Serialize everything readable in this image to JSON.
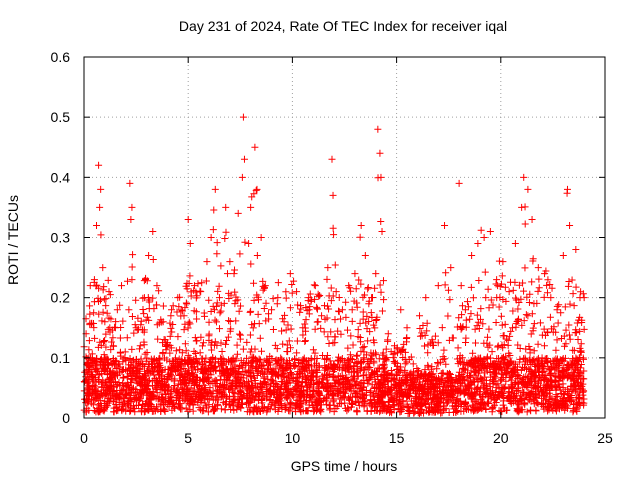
{
  "chart_data": {
    "type": "scatter",
    "title": "Day 231 of 2024, Rate Of TEC Index for receiver iqal",
    "xlabel": "GPS time / hours",
    "ylabel": "ROTI / TECUs",
    "xlim": [
      0,
      25
    ],
    "ylim": [
      0,
      0.6
    ],
    "xticks": [
      0,
      5,
      10,
      15,
      20,
      25
    ],
    "xtick_labels": [
      "0",
      "5",
      "10",
      "15",
      "20",
      "25"
    ],
    "yticks": [
      0,
      0.1,
      0.2,
      0.3,
      0.4,
      0.5,
      0.6
    ],
    "ytick_labels": [
      "0",
      "0.1",
      "0.2",
      "0.3",
      "0.4",
      "0.5",
      "0.6"
    ],
    "grid": true,
    "marker": "+",
    "color": "#ff0000",
    "series": [
      {
        "name": "ROTI",
        "note": "dense cloud of + markers between 0 and 24 h, mostly 0.02-0.2 TECU/s; representative envelope and peak samples",
        "points": [
          [
            0.1,
            0.14
          ],
          [
            0.2,
            0.05
          ],
          [
            0.3,
            0.22
          ],
          [
            0.4,
            0.1
          ],
          [
            0.5,
            0.23
          ],
          [
            0.6,
            0.32
          ],
          [
            0.7,
            0.42
          ],
          [
            0.75,
            0.35
          ],
          [
            0.8,
            0.38
          ],
          [
            0.9,
            0.25
          ],
          [
            1.0,
            0.16
          ],
          [
            1.2,
            0.21
          ],
          [
            1.4,
            0.12
          ],
          [
            1.6,
            0.18
          ],
          [
            1.8,
            0.22
          ],
          [
            2.0,
            0.08
          ],
          [
            2.2,
            0.39
          ],
          [
            2.25,
            0.33
          ],
          [
            2.3,
            0.35
          ],
          [
            2.5,
            0.15
          ],
          [
            2.7,
            0.12
          ],
          [
            2.9,
            0.2
          ],
          [
            3.1,
            0.27
          ],
          [
            3.3,
            0.31
          ],
          [
            3.5,
            0.22
          ],
          [
            3.8,
            0.16
          ],
          [
            4.0,
            0.12
          ],
          [
            4.2,
            0.18
          ],
          [
            4.5,
            0.2
          ],
          [
            4.8,
            0.17
          ],
          [
            5.0,
            0.33
          ],
          [
            5.1,
            0.29
          ],
          [
            5.3,
            0.22
          ],
          [
            5.6,
            0.21
          ],
          [
            5.9,
            0.26
          ],
          [
            6.1,
            0.3
          ],
          [
            6.3,
            0.38
          ],
          [
            6.5,
            0.2
          ],
          [
            6.8,
            0.35
          ],
          [
            7.0,
            0.26
          ],
          [
            7.2,
            0.24
          ],
          [
            7.4,
            0.34
          ],
          [
            7.6,
            0.4
          ],
          [
            7.65,
            0.5
          ],
          [
            7.7,
            0.43
          ],
          [
            7.9,
            0.29
          ],
          [
            8.2,
            0.45
          ],
          [
            8.3,
            0.38
          ],
          [
            8.5,
            0.3
          ],
          [
            8.7,
            0.22
          ],
          [
            9.0,
            0.18
          ],
          [
            9.3,
            0.2
          ],
          [
            9.6,
            0.16
          ],
          [
            9.9,
            0.24
          ],
          [
            10.2,
            0.21
          ],
          [
            10.5,
            0.15
          ],
          [
            10.8,
            0.18
          ],
          [
            11.1,
            0.22
          ],
          [
            11.4,
            0.17
          ],
          [
            11.7,
            0.25
          ],
          [
            11.9,
            0.43
          ],
          [
            11.95,
            0.37
          ],
          [
            12.1,
            0.21
          ],
          [
            12.4,
            0.18
          ],
          [
            12.7,
            0.22
          ],
          [
            13.0,
            0.24
          ],
          [
            13.3,
            0.32
          ],
          [
            13.5,
            0.27
          ],
          [
            13.8,
            0.2
          ],
          [
            14.0,
            0.24
          ],
          [
            14.1,
            0.48
          ],
          [
            14.2,
            0.44
          ],
          [
            14.25,
            0.4
          ],
          [
            14.3,
            0.31
          ],
          [
            14.6,
            0.14
          ],
          [
            14.9,
            0.12
          ],
          [
            15.2,
            0.18
          ],
          [
            15.5,
            0.15
          ],
          [
            15.8,
            0.09
          ],
          [
            16.1,
            0.17
          ],
          [
            16.4,
            0.2
          ],
          [
            16.7,
            0.13
          ],
          [
            17.0,
            0.22
          ],
          [
            17.3,
            0.32
          ],
          [
            17.6,
            0.25
          ],
          [
            18.0,
            0.39
          ],
          [
            18.3,
            0.18
          ],
          [
            18.6,
            0.27
          ],
          [
            18.9,
            0.29
          ],
          [
            19.2,
            0.3
          ],
          [
            19.5,
            0.31
          ],
          [
            19.8,
            0.23
          ],
          [
            20.1,
            0.26
          ],
          [
            20.4,
            0.21
          ],
          [
            20.7,
            0.29
          ],
          [
            21.0,
            0.35
          ],
          [
            21.1,
            0.4
          ],
          [
            21.3,
            0.38
          ],
          [
            21.5,
            0.33
          ],
          [
            21.8,
            0.25
          ],
          [
            22.1,
            0.24
          ],
          [
            22.4,
            0.2
          ],
          [
            22.7,
            0.18
          ],
          [
            23.0,
            0.27
          ],
          [
            23.2,
            0.38
          ],
          [
            23.3,
            0.32
          ],
          [
            23.6,
            0.28
          ],
          [
            23.8,
            0.2
          ],
          [
            24.0,
            0.2
          ]
        ]
      }
    ]
  }
}
